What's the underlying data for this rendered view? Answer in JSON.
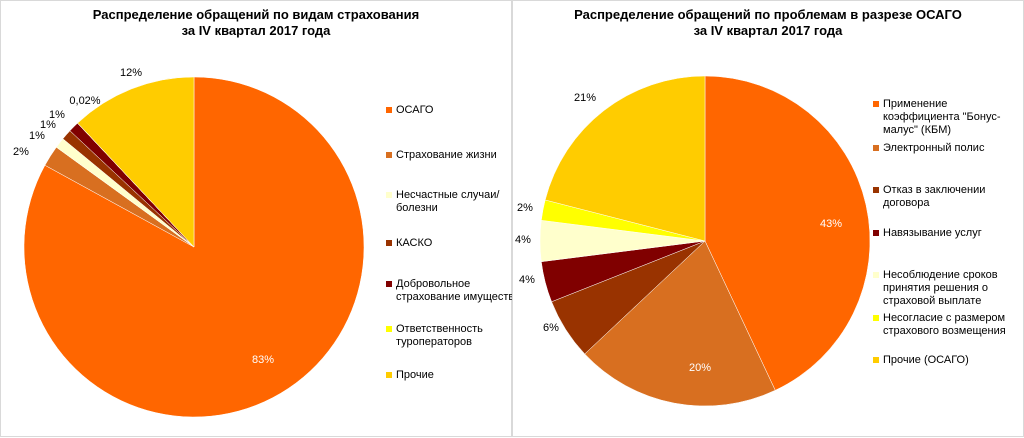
{
  "chart_data": [
    {
      "type": "pie",
      "title": "Распределение обращений по видам страхования\nза IV квартал 2017 года",
      "title_lines": [
        "Распределение обращений по видам страхования",
        "за IV квартал 2017 года"
      ],
      "legend_placement": "right",
      "slices": [
        {
          "label": "ОСАГО",
          "value": 83,
          "display": "83%",
          "color": "#FF6600"
        },
        {
          "label": "Страхование жизни",
          "value": 2,
          "display": "2%",
          "color": "#D86F20"
        },
        {
          "label": "Несчастные случаи/болезни",
          "value": 1,
          "display": "1%",
          "color": "#FFFFCC"
        },
        {
          "label": "КАСКО",
          "value": 1,
          "display": "1%",
          "color": "#993300"
        },
        {
          "label": "Добровольное страхование имущества",
          "value": 1,
          "display": "1%",
          "color": "#800000"
        },
        {
          "label": "Ответственность туроператоров",
          "value": 0.02,
          "display": "0,02%",
          "color": "#FFFF00"
        },
        {
          "label": "Прочие",
          "value": 12,
          "display": "12%",
          "color": "#FFCC00"
        }
      ]
    },
    {
      "type": "pie",
      "title_lines": [
        "Распределение обращений по проблемам в разрезе ОСАГО",
        "за IV квартал 2017 года"
      ],
      "legend_placement": "right",
      "slices": [
        {
          "label": "Применение коэффициента \"Бонус-малус\" (КБМ)",
          "value": 43,
          "display": "43%",
          "color": "#FF6600"
        },
        {
          "label": "Электронный полис",
          "value": 20,
          "display": "20%",
          "color": "#D86F20"
        },
        {
          "label": "Отказ в заключении договора",
          "value": 6,
          "display": "6%",
          "color": "#993300"
        },
        {
          "label": "Навязывание услуг",
          "value": 4,
          "display": "4%",
          "color": "#800000"
        },
        {
          "label": "Несоблюдение сроков принятия решения о страховой выплате",
          "value": 4,
          "display": "4%",
          "color": "#FFFFCC"
        },
        {
          "label": "Несогласие с размером страхового возмещения",
          "value": 2,
          "display": "2%",
          "color": "#FFFF00"
        },
        {
          "label": "Прочие (ОСАГО)",
          "value": 21,
          "display": "21%",
          "color": "#FFCC00"
        }
      ]
    }
  ]
}
